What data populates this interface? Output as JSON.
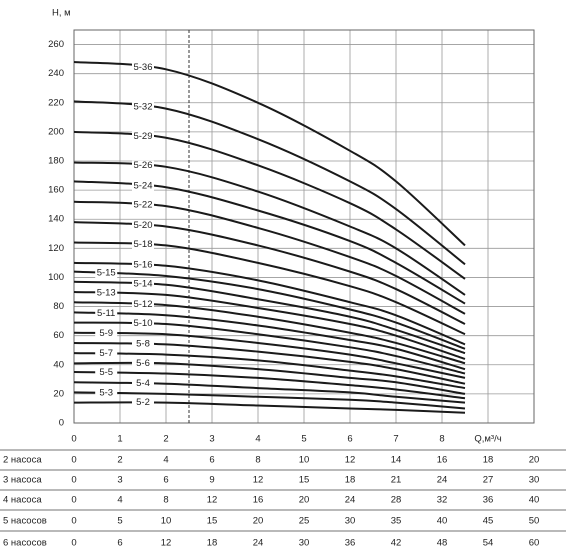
{
  "chart_data": {
    "type": "line",
    "y_label": "H, м",
    "xlim": [
      0,
      10
    ],
    "ylim": [
      0,
      270
    ],
    "xticks": [
      0,
      1,
      2,
      3,
      4,
      5,
      6,
      7,
      8,
      {
        "value": 9,
        "label": "Q,м³/ч"
      }
    ],
    "yticks": [
      0,
      20,
      40,
      60,
      80,
      100,
      120,
      140,
      160,
      180,
      200,
      220,
      240,
      260
    ],
    "grid": true,
    "color": "#1a1a1a",
    "marker_line_x": 2.5,
    "x": [
      0,
      2,
      4,
      6,
      7,
      8.5
    ],
    "series": [
      {
        "name": "5-2",
        "values": [
          14,
          14,
          12,
          10,
          9,
          7
        ]
      },
      {
        "name": "5-3",
        "values": [
          21,
          20,
          18,
          16,
          14,
          10
        ]
      },
      {
        "name": "5-4",
        "values": [
          28,
          27,
          24,
          21,
          18,
          14
        ]
      },
      {
        "name": "5-5",
        "values": [
          35,
          34,
          31,
          26,
          23,
          17
        ]
      },
      {
        "name": "5-6",
        "values": [
          41,
          41,
          37,
          31,
          28,
          20
        ]
      },
      {
        "name": "5-7",
        "values": [
          48,
          47,
          43,
          36,
          32,
          24
        ]
      },
      {
        "name": "5-8",
        "values": [
          55,
          54,
          49,
          42,
          37,
          27
        ]
      },
      {
        "name": "5-9",
        "values": [
          62,
          61,
          55,
          47,
          41,
          31
        ]
      },
      {
        "name": "5-10",
        "values": [
          69,
          68,
          61,
          52,
          46,
          34
        ]
      },
      {
        "name": "5-11",
        "values": [
          76,
          74,
          67,
          57,
          51,
          37
        ]
      },
      {
        "name": "5-12",
        "values": [
          83,
          81,
          73,
          62,
          55,
          41
        ]
      },
      {
        "name": "5-13",
        "values": [
          90,
          88,
          79,
          68,
          60,
          44
        ]
      },
      {
        "name": "5-14",
        "values": [
          97,
          95,
          85,
          73,
          64,
          48
        ]
      },
      {
        "name": "5-15",
        "values": [
          104,
          101,
          92,
          78,
          69,
          51
        ]
      },
      {
        "name": "5-16",
        "values": [
          110,
          108,
          98,
          83,
          74,
          54
        ]
      },
      {
        "name": "5-18",
        "values": [
          124,
          122,
          110,
          94,
          83,
          61
        ]
      },
      {
        "name": "5-20",
        "values": [
          138,
          135,
          122,
          104,
          92,
          68
        ]
      },
      {
        "name": "5-22",
        "values": [
          152,
          149,
          134,
          114,
          101,
          75
        ]
      },
      {
        "name": "5-24",
        "values": [
          166,
          162,
          146,
          125,
          110,
          82
        ]
      },
      {
        "name": "5-26",
        "values": [
          179,
          176,
          159,
          135,
          120,
          88
        ]
      },
      {
        "name": "5-29",
        "values": [
          200,
          196,
          177,
          151,
          133,
          99
        ]
      },
      {
        "name": "5-32",
        "values": [
          221,
          216,
          195,
          166,
          147,
          109
        ]
      },
      {
        "name": "5-36",
        "values": [
          248,
          243,
          220,
          187,
          166,
          122
        ]
      }
    ],
    "pump_table": [
      {
        "label": "2 насоса",
        "values": [
          0,
          2,
          4,
          6,
          8,
          10,
          12,
          14,
          16,
          18,
          20
        ]
      },
      {
        "label": "3 насоса",
        "values": [
          0,
          3,
          6,
          9,
          12,
          15,
          18,
          21,
          24,
          27,
          30
        ]
      },
      {
        "label": "4 насоса",
        "values": [
          0,
          4,
          8,
          12,
          16,
          20,
          24,
          28,
          32,
          36,
          40
        ]
      },
      {
        "label": "5 насосов",
        "values": [
          0,
          5,
          10,
          15,
          20,
          25,
          30,
          35,
          40,
          45,
          50
        ]
      },
      {
        "label": "6 насосов",
        "values": [
          0,
          6,
          12,
          18,
          24,
          30,
          36,
          42,
          48,
          54,
          60
        ]
      }
    ]
  }
}
